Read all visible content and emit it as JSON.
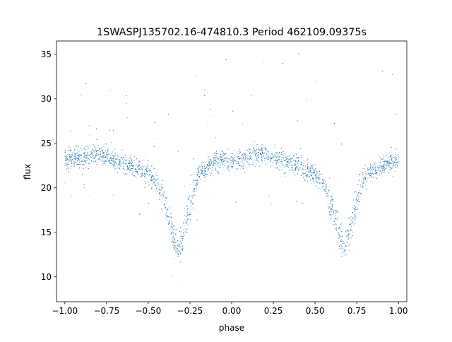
{
  "chart_data": {
    "type": "scatter",
    "title": "1SWASPJ135702.16-474810.3 Period 462109.09375s",
    "xlabel": "phase",
    "ylabel": "flux",
    "xlim": [
      -1.05,
      1.05
    ],
    "ylim": [
      7.2,
      36.5
    ],
    "xticks": [
      -1.0,
      -0.75,
      -0.5,
      -0.25,
      0.0,
      0.25,
      0.5,
      0.75,
      1.0
    ],
    "xtick_labels": [
      "−1.00",
      "−0.75",
      "−0.50",
      "−0.25",
      "0.00",
      "0.25",
      "0.50",
      "0.75",
      "1.00"
    ],
    "yticks": [
      10,
      15,
      20,
      25,
      30,
      35
    ],
    "ytick_labels": [
      "10",
      "15",
      "20",
      "25",
      "30",
      "35"
    ],
    "grid": false,
    "legend": "none",
    "marker_color": "#1f77b4",
    "series": [
      {
        "description": "phase-folded light curve points (representative envelope: phase, mean flux)",
        "x": [
          -1.0,
          -0.9,
          -0.8,
          -0.7,
          -0.6,
          -0.5,
          -0.45,
          -0.4,
          -0.35,
          -0.32,
          -0.3,
          -0.25,
          -0.2,
          -0.1,
          0.0,
          0.1,
          0.2,
          0.3,
          0.4,
          0.5,
          0.55,
          0.6,
          0.65,
          0.68,
          0.7,
          0.75,
          0.8,
          0.9,
          1.0
        ],
        "y": [
          23.2,
          23.5,
          23.8,
          23.0,
          22.6,
          21.6,
          20.8,
          18.5,
          14.5,
          13.0,
          14.0,
          18.2,
          21.5,
          23.0,
          23.0,
          23.4,
          23.9,
          23.0,
          22.6,
          21.5,
          20.5,
          18.2,
          14.5,
          13.0,
          14.2,
          18.5,
          21.5,
          22.5,
          23.2
        ]
      }
    ]
  }
}
